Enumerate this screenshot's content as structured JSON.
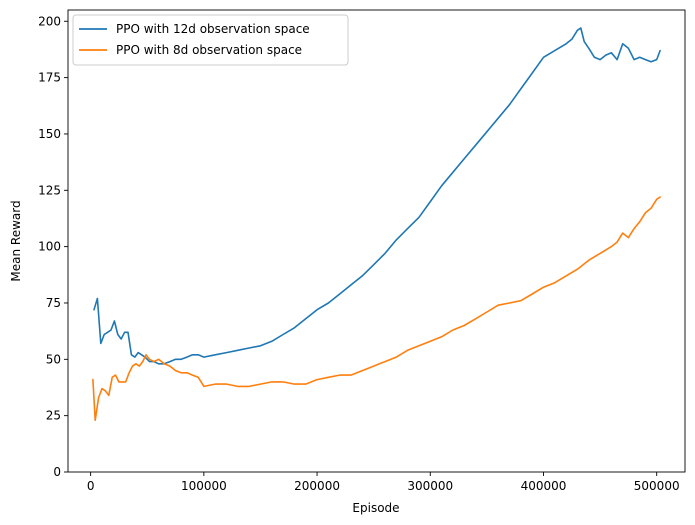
{
  "chart_data": {
    "type": "line",
    "title": "",
    "xlabel": "Episode",
    "ylabel": "Mean Reward",
    "xlim": [
      -20000,
      525000
    ],
    "ylim": [
      0,
      205
    ],
    "xticks": [
      0,
      100000,
      200000,
      300000,
      400000,
      500000
    ],
    "xtick_labels": [
      "0",
      "100000",
      "200000",
      "300000",
      "400000",
      "500000"
    ],
    "yticks": [
      0,
      25,
      50,
      75,
      100,
      125,
      150,
      175,
      200
    ],
    "ytick_labels": [
      "0",
      "25",
      "50",
      "75",
      "100",
      "125",
      "150",
      "175",
      "200"
    ],
    "grid": false,
    "legend_position": "top-left",
    "series": [
      {
        "name": "PPO with 12d observation space",
        "color": "#1f77b4",
        "x": [
          3000,
          6000,
          9000,
          12000,
          15000,
          18000,
          21000,
          24000,
          27000,
          30000,
          33000,
          36000,
          39000,
          42000,
          45000,
          48000,
          52000,
          56000,
          60000,
          65000,
          70000,
          75000,
          80000,
          85000,
          90000,
          95000,
          100000,
          110000,
          120000,
          130000,
          140000,
          150000,
          160000,
          170000,
          180000,
          190000,
          200000,
          210000,
          220000,
          230000,
          240000,
          250000,
          260000,
          270000,
          280000,
          290000,
          300000,
          310000,
          320000,
          330000,
          340000,
          350000,
          360000,
          370000,
          380000,
          390000,
          400000,
          410000,
          420000,
          425000,
          430000,
          433000,
          436000,
          440000,
          445000,
          450000,
          455000,
          460000,
          465000,
          470000,
          475000,
          480000,
          485000,
          490000,
          495000,
          500000,
          503000
        ],
        "y": [
          72,
          77,
          57,
          61,
          62,
          63,
          67,
          61,
          59,
          62,
          62,
          52,
          51,
          53,
          52,
          51,
          49,
          49,
          48,
          48,
          49,
          50,
          50,
          51,
          52,
          52,
          51,
          52,
          53,
          54,
          55,
          56,
          58,
          61,
          64,
          68,
          72,
          75,
          79,
          83,
          87,
          92,
          97,
          103,
          108,
          113,
          120,
          127,
          133,
          139,
          145,
          151,
          157,
          163,
          170,
          177,
          184,
          187,
          190,
          192,
          196,
          197,
          191,
          188,
          184,
          183,
          185,
          186,
          183,
          190,
          188,
          183,
          184,
          183,
          182,
          183,
          187
        ]
      },
      {
        "name": "PPO with 8d observation space",
        "color": "#ff7f0e",
        "x": [
          2000,
          4000,
          7000,
          10000,
          13000,
          16000,
          19000,
          22000,
          25000,
          28000,
          31000,
          34000,
          37000,
          40000,
          43000,
          46000,
          49000,
          52000,
          56000,
          60000,
          65000,
          70000,
          75000,
          80000,
          85000,
          90000,
          95000,
          100000,
          110000,
          120000,
          130000,
          140000,
          150000,
          160000,
          170000,
          180000,
          190000,
          200000,
          210000,
          220000,
          230000,
          240000,
          250000,
          260000,
          270000,
          280000,
          290000,
          300000,
          310000,
          320000,
          330000,
          340000,
          350000,
          360000,
          370000,
          380000,
          390000,
          400000,
          410000,
          420000,
          430000,
          440000,
          450000,
          460000,
          465000,
          470000,
          475000,
          480000,
          485000,
          490000,
          495000,
          500000,
          503000
        ],
        "y": [
          41,
          23,
          33,
          37,
          36,
          34,
          42,
          43,
          40,
          40,
          40,
          44,
          47,
          48,
          47,
          49,
          52,
          50,
          49,
          50,
          48,
          47,
          45,
          44,
          44,
          43,
          42,
          38,
          39,
          39,
          38,
          38,
          39,
          40,
          40,
          39,
          39,
          41,
          42,
          43,
          43,
          45,
          47,
          49,
          51,
          54,
          56,
          58,
          60,
          63,
          65,
          68,
          71,
          74,
          75,
          76,
          79,
          82,
          84,
          87,
          90,
          94,
          97,
          100,
          102,
          106,
          104,
          108,
          111,
          115,
          117,
          121,
          122
        ]
      }
    ]
  }
}
